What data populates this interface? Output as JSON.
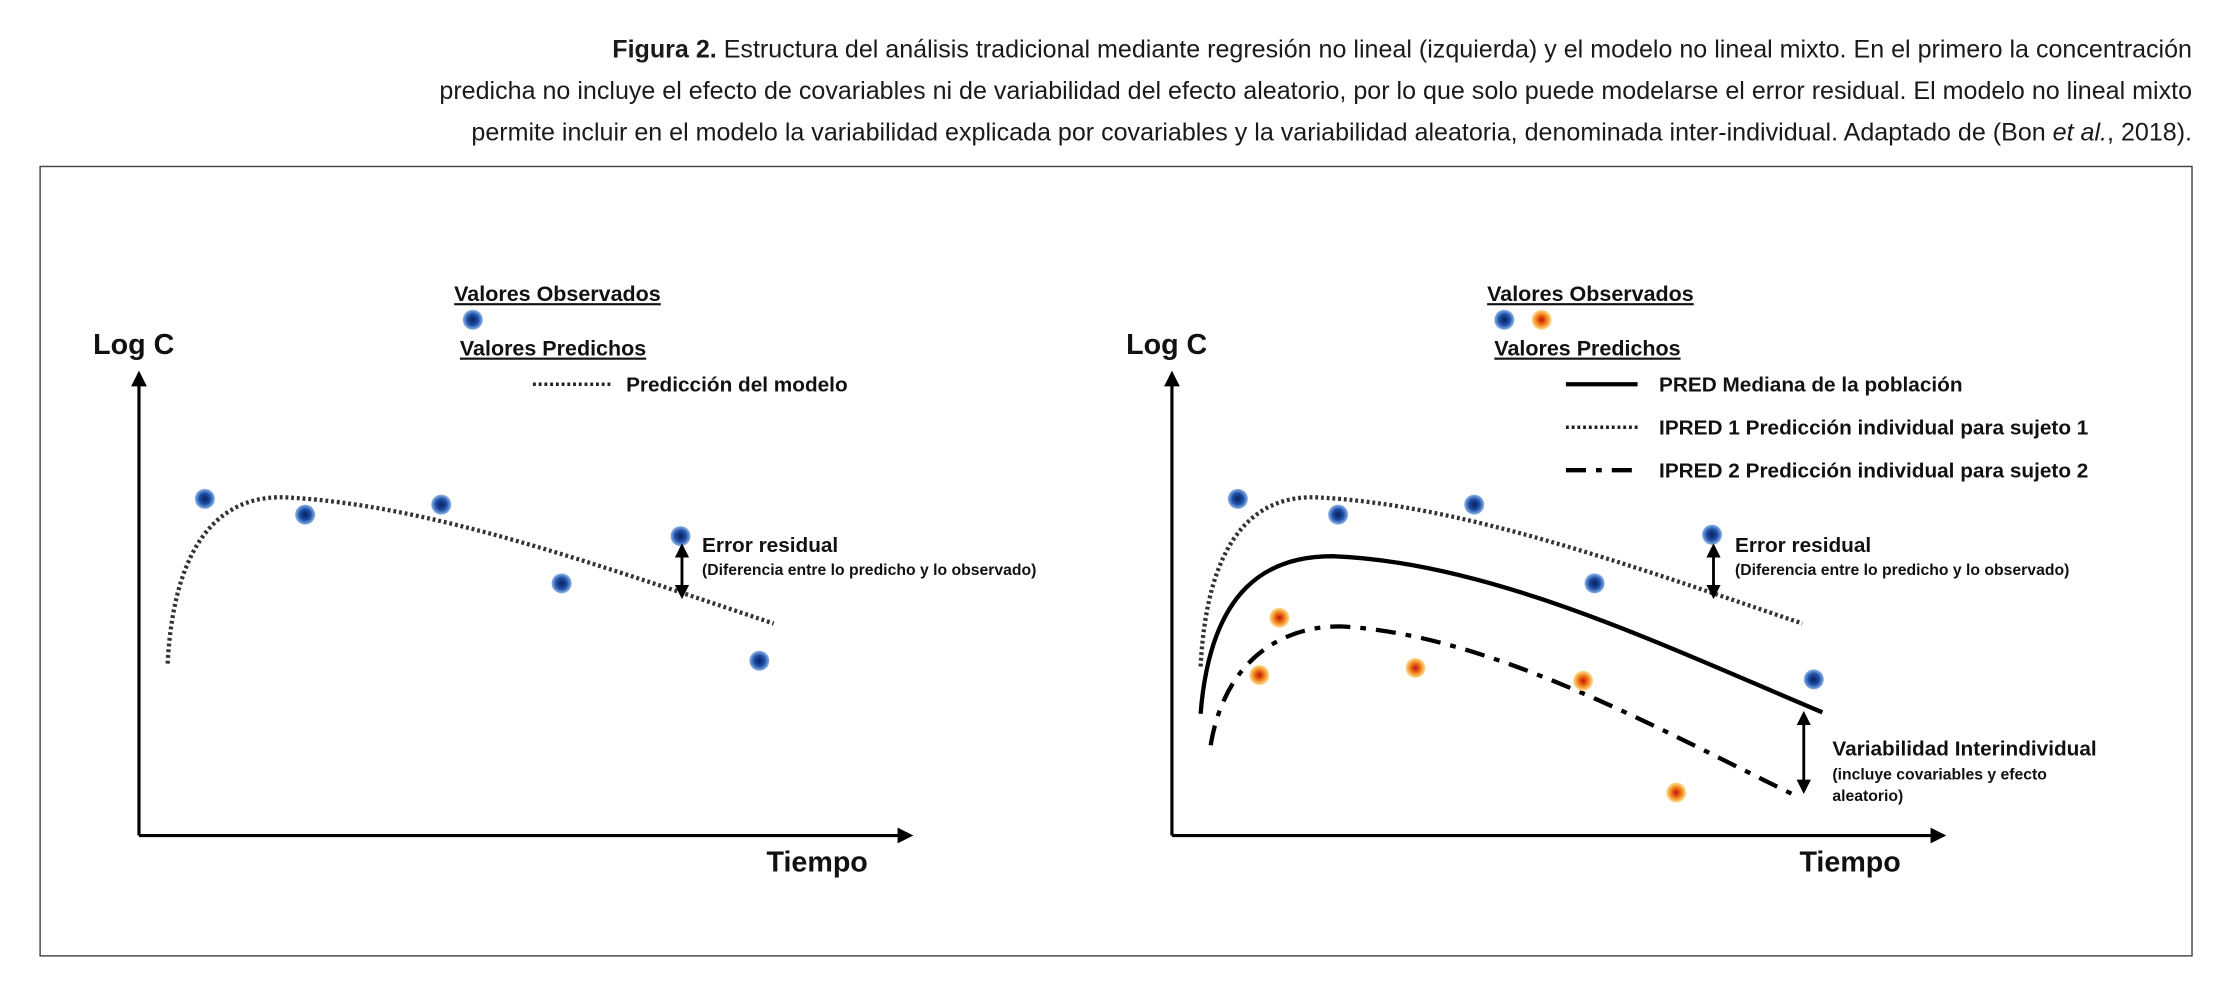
{
  "caption": {
    "label": "Figura 2.",
    "lines": [
      "Estructura del análisis tradicional mediante regresión no lineal (izquierda) y el modelo no lineal mixto. En el primero la concentración",
      "predicha no incluye el efecto de covariables ni de variabilidad del efecto aleatorio, por lo que solo puede modelarse el error residual. El modelo no lineal mixto",
      "permite incluir en el modelo la variabilidad explicada por covariables y la variabilidad aleatoria, denominada inter-individual. Adaptado de (Bon"
    ],
    "italic": "et al.",
    "end": ", 2018)."
  },
  "left": {
    "y_label": "Log C",
    "x_label": "Tiempo",
    "observed": "Valores Observados",
    "predicted": "Valores Predichos",
    "model": "Predicción del modelo",
    "error": "Error residual",
    "error_note": "(Diferencia entre lo predicho y lo observado)"
  },
  "right": {
    "y_label": "Log C",
    "x_label": "Tiempo",
    "observed": "Valores Observados",
    "predicted": "Valores Predichos",
    "items": [
      "PRED Mediana de la población",
      "IPRED 1 Predicción individual para sujeto 1",
      "IPRED 2 Predicción individual para sujeto 2"
    ],
    "error": "Error residual",
    "error_note": "(Diferencia entre lo predicho y lo observado)",
    "variability": "Variabilidad Interindividual",
    "variability_note": [
      "(incluye covariables y efecto",
      "aleatorio)"
    ]
  }
}
